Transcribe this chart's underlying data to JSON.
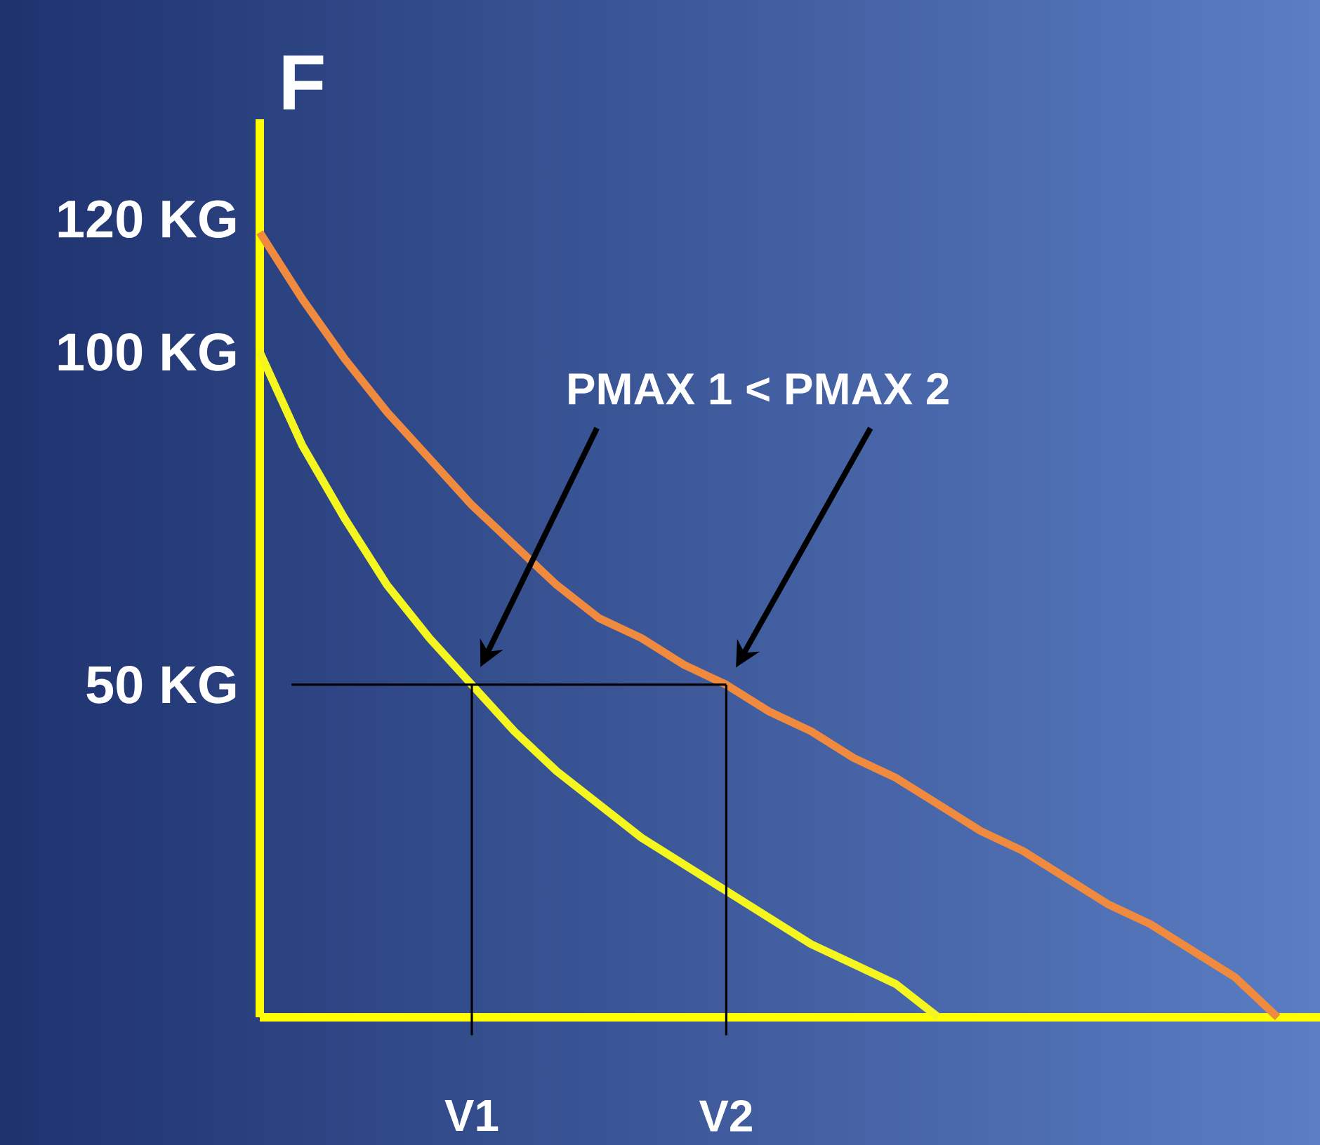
{
  "chart_data": {
    "type": "line",
    "ylabel": "F",
    "categories": [
      null,
      null,
      null,
      null,
      null,
      "V1",
      null,
      null,
      null,
      null,
      null,
      "V2",
      null,
      null,
      null,
      null,
      null,
      null,
      null,
      null,
      null,
      null,
      null,
      null,
      null,
      null
    ],
    "series": [
      {
        "color": "#f5f520",
        "values": [
          100,
          86,
          75,
          65,
          57,
          50,
          43,
          37,
          32,
          27,
          23,
          19,
          15,
          11,
          8,
          5,
          0,
          null,
          null,
          null,
          null,
          null,
          null,
          null,
          null,
          null
        ]
      },
      {
        "color": "#f08a3e",
        "values": [
          118,
          108,
          99,
          91,
          84,
          77,
          71,
          65,
          60,
          57,
          53,
          50,
          46,
          43,
          39,
          36,
          32,
          28,
          25,
          21,
          17,
          14,
          10,
          6,
          0,
          null
        ]
      }
    ],
    "ylim": [
      0,
      135
    ],
    "yticks": [
      {
        "value": 50,
        "label": "50 KG"
      },
      {
        "value": 100,
        "label": "100 KG"
      },
      {
        "value": 120,
        "label": "120 KG"
      }
    ],
    "ref_lines": [
      {
        "axis": "y",
        "value": 50,
        "color": "#000000"
      },
      {
        "axis": "x",
        "value": "V1",
        "color": "#000000"
      },
      {
        "axis": "x",
        "value": "V2",
        "color": "#000000"
      }
    ],
    "annotations": [
      "PMAX 1 < PMAX 2"
    ],
    "grid": false,
    "marker": "none",
    "line_style": "solid"
  }
}
